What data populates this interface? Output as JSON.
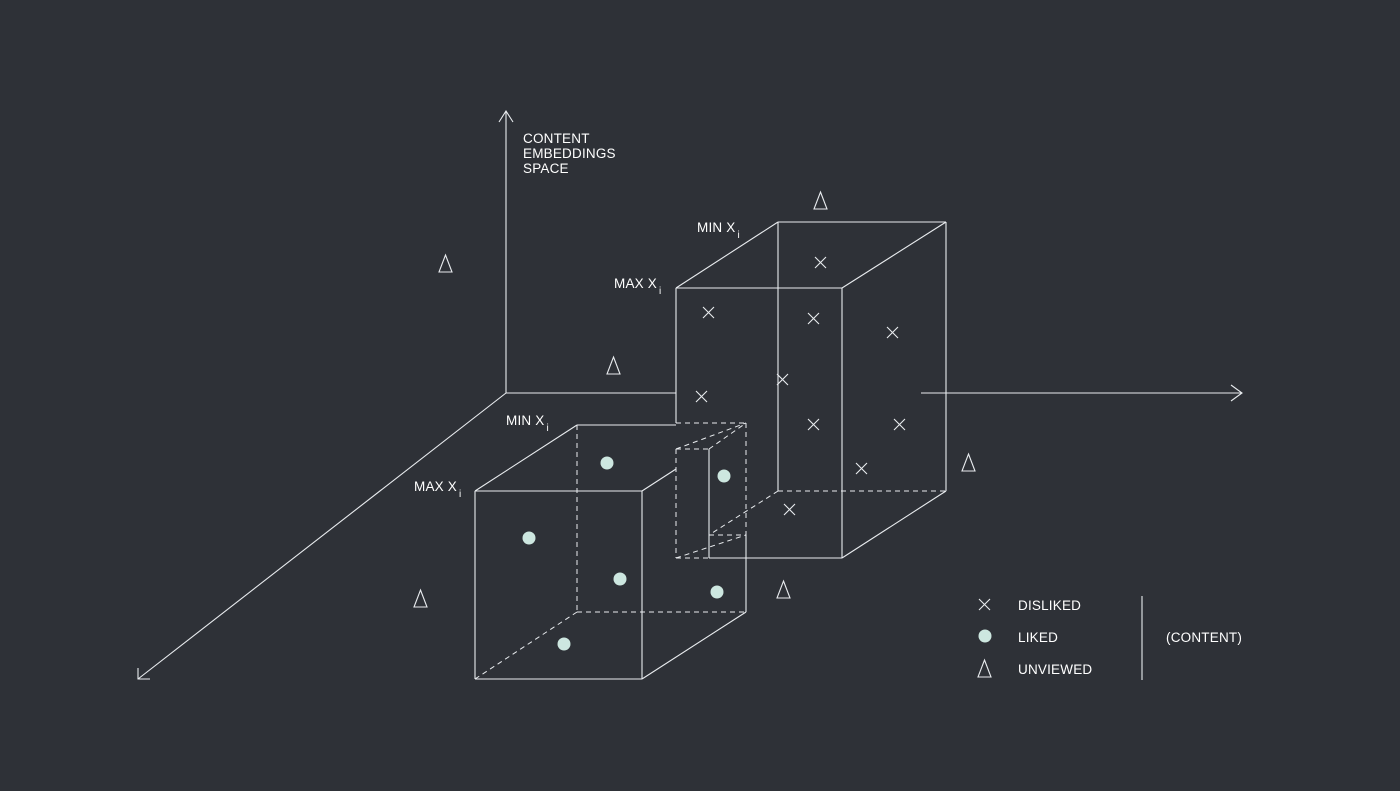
{
  "axis_label": {
    "line1": "CONTENT",
    "line2": "EMBEDDINGS",
    "line3": "SPACE"
  },
  "box_labels": {
    "upper_min_main": "MIN X",
    "upper_min_sub": "i",
    "upper_max_main": "MAX X",
    "upper_max_sub": "i",
    "lower_min_main": "MIN X",
    "lower_min_sub": "i",
    "lower_max_main": "MAX X",
    "lower_max_sub": "i"
  },
  "legend": {
    "items": [
      {
        "label": "DISLIKED",
        "icon": "x-icon"
      },
      {
        "label": "LIKED",
        "icon": "dot-icon"
      },
      {
        "label": "UNVIEWED",
        "icon": "triangle-icon"
      }
    ],
    "group_label": "(CONTENT)"
  },
  "colors": {
    "background": "#2e3137",
    "line": "#e9ecef",
    "liked_dot": "#cde7e0"
  }
}
